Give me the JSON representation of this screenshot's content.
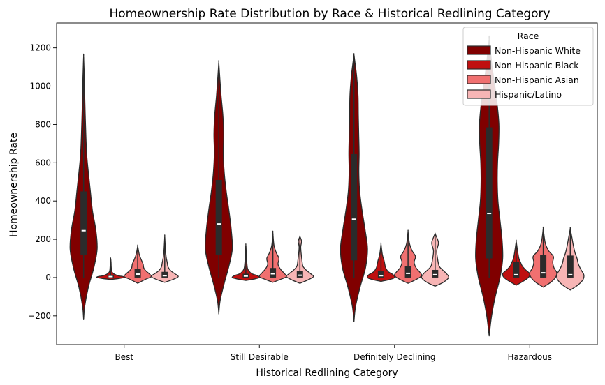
{
  "chart_data": {
    "type": "violin",
    "title": "Homeownership Rate Distribution by Race & Historical Redlining Category",
    "xlabel": "Historical Redlining Category",
    "ylabel": "Homeownership Rate",
    "categories": [
      "Best",
      "Still Desirable",
      "Definitely Declining",
      "Hazardous"
    ],
    "ylim": [
      -350,
      1330
    ],
    "yticks": [
      -200,
      0,
      200,
      400,
      600,
      800,
      1000,
      1200
    ],
    "ytick_labels": [
      "−200",
      "0",
      "200",
      "400",
      "600",
      "800",
      "1000",
      "1200"
    ],
    "grid": false,
    "legend": {
      "title": "Race",
      "placement": "top-right",
      "entries": [
        "Non-Hispanic White",
        "Non-Hispanic Black",
        "Non-Hispanic Asian",
        "Hispanic/Latino"
      ]
    },
    "series": [
      {
        "name": "Non-Hispanic White",
        "color": "#800000",
        "violins": [
          {
            "ymin": -220,
            "ymax": 1155,
            "q1": 120,
            "median": 245,
            "q3": 450,
            "whisker_low": 0,
            "whisker_high": 1150,
            "profile": [
              [
                -220,
                0.0
              ],
              [
                -150,
                0.08
              ],
              [
                -50,
                0.35
              ],
              [
                50,
                0.75
              ],
              [
                150,
                1.0
              ],
              [
                250,
                0.9
              ],
              [
                350,
                0.65
              ],
              [
                450,
                0.5
              ],
              [
                550,
                0.35
              ],
              [
                650,
                0.22
              ],
              [
                800,
                0.14
              ],
              [
                950,
                0.08
              ],
              [
                1050,
                0.05
              ],
              [
                1155,
                0.0
              ]
            ]
          },
          {
            "ymin": -190,
            "ymax": 1125,
            "q1": 120,
            "median": 280,
            "q3": 510,
            "whisker_low": 0,
            "whisker_high": 1120,
            "profile": [
              [
                -190,
                0.0
              ],
              [
                -120,
                0.1
              ],
              [
                -30,
                0.4
              ],
              [
                60,
                0.75
              ],
              [
                150,
                1.0
              ],
              [
                250,
                0.92
              ],
              [
                350,
                0.75
              ],
              [
                450,
                0.55
              ],
              [
                550,
                0.4
              ],
              [
                650,
                0.33
              ],
              [
                750,
                0.36
              ],
              [
                850,
                0.3
              ],
              [
                950,
                0.17
              ],
              [
                1050,
                0.07
              ],
              [
                1125,
                0.0
              ]
            ]
          },
          {
            "ymin": -230,
            "ymax": 1165,
            "q1": 90,
            "median": 305,
            "q3": 645,
            "whisker_low": 0,
            "whisker_high": 1160,
            "profile": [
              [
                -230,
                0.0
              ],
              [
                -150,
                0.12
              ],
              [
                -50,
                0.45
              ],
              [
                50,
                0.85
              ],
              [
                150,
                1.0
              ],
              [
                250,
                0.82
              ],
              [
                350,
                0.6
              ],
              [
                450,
                0.42
              ],
              [
                550,
                0.36
              ],
              [
                650,
                0.38
              ],
              [
                750,
                0.35
              ],
              [
                850,
                0.32
              ],
              [
                950,
                0.3
              ],
              [
                1050,
                0.2
              ],
              [
                1120,
                0.08
              ],
              [
                1165,
                0.0
              ]
            ]
          },
          {
            "ymin": -305,
            "ymax": 1245,
            "q1": 100,
            "median": 335,
            "q3": 785,
            "whisker_low": 0,
            "whisker_high": 1240,
            "profile": [
              [
                -305,
                0.0
              ],
              [
                -200,
                0.18
              ],
              [
                -100,
                0.45
              ],
              [
                0,
                0.8
              ],
              [
                100,
                1.0
              ],
              [
                200,
                0.95
              ],
              [
                300,
                0.8
              ],
              [
                400,
                0.65
              ],
              [
                500,
                0.6
              ],
              [
                600,
                0.62
              ],
              [
                700,
                0.7
              ],
              [
                800,
                0.72
              ],
              [
                900,
                0.6
              ],
              [
                1000,
                0.42
              ],
              [
                1100,
                0.22
              ],
              [
                1245,
                0.0
              ]
            ]
          }
        ]
      },
      {
        "name": "Non-Hispanic Black",
        "color": "#bf1010",
        "violins": [
          {
            "ymin": -10,
            "ymax": 100,
            "q1": 0,
            "median": 5,
            "q3": 12,
            "whisker_low": 0,
            "whisker_high": 95,
            "profile": [
              [
                -10,
                0.0
              ],
              [
                -5,
                0.6
              ],
              [
                0,
                1.0
              ],
              [
                5,
                0.95
              ],
              [
                10,
                0.55
              ],
              [
                20,
                0.22
              ],
              [
                30,
                0.1
              ],
              [
                40,
                0.06
              ],
              [
                60,
                0.04
              ],
              [
                80,
                0.03
              ],
              [
                100,
                0.0
              ]
            ]
          },
          {
            "ymin": -15,
            "ymax": 170,
            "q1": 0,
            "median": 8,
            "q3": 20,
            "whisker_low": 0,
            "whisker_high": 165,
            "profile": [
              [
                -15,
                0.0
              ],
              [
                -8,
                0.6
              ],
              [
                0,
                1.0
              ],
              [
                10,
                0.85
              ],
              [
                20,
                0.45
              ],
              [
                35,
                0.22
              ],
              [
                50,
                0.12
              ],
              [
                80,
                0.07
              ],
              [
                120,
                0.04
              ],
              [
                170,
                0.0
              ]
            ]
          },
          {
            "ymin": -20,
            "ymax": 175,
            "q1": 0,
            "median": 10,
            "q3": 35,
            "whisker_low": 0,
            "whisker_high": 170,
            "profile": [
              [
                -20,
                0.0
              ],
              [
                -10,
                0.65
              ],
              [
                0,
                1.0
              ],
              [
                15,
                0.9
              ],
              [
                30,
                0.55
              ],
              [
                50,
                0.35
              ],
              [
                70,
                0.28
              ],
              [
                90,
                0.22
              ],
              [
                120,
                0.1
              ],
              [
                175,
                0.0
              ]
            ]
          },
          {
            "ymin": -40,
            "ymax": 190,
            "q1": 0,
            "median": 15,
            "q3": 80,
            "whisker_low": 0,
            "whisker_high": 185,
            "profile": [
              [
                -40,
                0.0
              ],
              [
                -20,
                0.5
              ],
              [
                0,
                0.9
              ],
              [
                20,
                1.0
              ],
              [
                40,
                0.7
              ],
              [
                60,
                0.45
              ],
              [
                80,
                0.32
              ],
              [
                100,
                0.2
              ],
              [
                140,
                0.1
              ],
              [
                190,
                0.0
              ]
            ]
          }
        ]
      },
      {
        "name": "Non-Hispanic Asian",
        "color": "#f07070",
        "violins": [
          {
            "ymin": -30,
            "ymax": 165,
            "q1": 0,
            "median": 18,
            "q3": 45,
            "whisker_low": 0,
            "whisker_high": 160,
            "profile": [
              [
                -30,
                0.0
              ],
              [
                -10,
                0.55
              ],
              [
                5,
                1.0
              ],
              [
                20,
                0.85
              ],
              [
                35,
                0.6
              ],
              [
                50,
                0.45
              ],
              [
                70,
                0.4
              ],
              [
                90,
                0.28
              ],
              [
                120,
                0.12
              ],
              [
                165,
                0.0
              ]
            ]
          },
          {
            "ymin": -25,
            "ymax": 235,
            "q1": 0,
            "median": 20,
            "q3": 50,
            "whisker_low": 0,
            "whisker_high": 230,
            "profile": [
              [
                -25,
                0.0
              ],
              [
                -10,
                0.55
              ],
              [
                5,
                1.0
              ],
              [
                25,
                0.8
              ],
              [
                45,
                0.55
              ],
              [
                70,
                0.38
              ],
              [
                100,
                0.45
              ],
              [
                130,
                0.25
              ],
              [
                170,
                0.08
              ],
              [
                235,
                0.0
              ]
            ]
          },
          {
            "ymin": -30,
            "ymax": 240,
            "q1": 0,
            "median": 22,
            "q3": 60,
            "whisker_low": 0,
            "whisker_high": 235,
            "profile": [
              [
                -30,
                0.0
              ],
              [
                -10,
                0.6
              ],
              [
                10,
                1.0
              ],
              [
                30,
                0.85
              ],
              [
                50,
                0.6
              ],
              [
                80,
                0.45
              ],
              [
                110,
                0.55
              ],
              [
                140,
                0.3
              ],
              [
                180,
                0.1
              ],
              [
                240,
                0.0
              ]
            ]
          },
          {
            "ymin": -50,
            "ymax": 255,
            "q1": 0,
            "median": 25,
            "q3": 120,
            "whisker_low": 0,
            "whisker_high": 250,
            "profile": [
              [
                -50,
                0.0
              ],
              [
                -25,
                0.55
              ],
              [
                0,
                0.9
              ],
              [
                25,
                1.0
              ],
              [
                50,
                0.8
              ],
              [
                80,
                0.7
              ],
              [
                110,
                0.75
              ],
              [
                140,
                0.4
              ],
              [
                180,
                0.15
              ],
              [
                255,
                0.0
              ]
            ]
          }
        ]
      },
      {
        "name": "Hispanic/Latino",
        "color": "#f7b5b5",
        "violins": [
          {
            "ymin": -25,
            "ymax": 215,
            "q1": 0,
            "median": 10,
            "q3": 30,
            "whisker_low": 0,
            "whisker_high": 210,
            "profile": [
              [
                -25,
                0.0
              ],
              [
                -10,
                0.6
              ],
              [
                5,
                1.0
              ],
              [
                20,
                0.75
              ],
              [
                35,
                0.45
              ],
              [
                55,
                0.25
              ],
              [
                80,
                0.18
              ],
              [
                110,
                0.1
              ],
              [
                150,
                0.05
              ],
              [
                215,
                0.0
              ]
            ]
          },
          {
            "ymin": -30,
            "ymax": 215,
            "q1": 0,
            "median": 12,
            "q3": 35,
            "whisker_low": 0,
            "whisker_high": 210,
            "profile": [
              [
                -30,
                0.0
              ],
              [
                -12,
                0.6
              ],
              [
                5,
                1.0
              ],
              [
                20,
                0.8
              ],
              [
                40,
                0.45
              ],
              [
                60,
                0.22
              ],
              [
                90,
                0.15
              ],
              [
                120,
                0.1
              ],
              [
                160,
                0.06
              ],
              [
                190,
                0.12
              ],
              [
                215,
                0.0
              ]
            ]
          },
          {
            "ymin": -45,
            "ymax": 230,
            "q1": 0,
            "median": 15,
            "q3": 40,
            "whisker_low": 0,
            "whisker_high": 225,
            "profile": [
              [
                -45,
                0.0
              ],
              [
                -25,
                0.6
              ],
              [
                0,
                1.0
              ],
              [
                20,
                0.85
              ],
              [
                40,
                0.55
              ],
              [
                60,
                0.3
              ],
              [
                100,
                0.18
              ],
              [
                140,
                0.12
              ],
              [
                180,
                0.25
              ],
              [
                210,
                0.12
              ],
              [
                230,
                0.0
              ]
            ]
          },
          {
            "ymin": -65,
            "ymax": 255,
            "q1": 0,
            "median": 15,
            "q3": 115,
            "whisker_low": 0,
            "whisker_high": 250,
            "profile": [
              [
                -65,
                0.0
              ],
              [
                -40,
                0.55
              ],
              [
                -10,
                0.95
              ],
              [
                15,
                1.0
              ],
              [
                40,
                0.8
              ],
              [
                70,
                0.6
              ],
              [
                100,
                0.5
              ],
              [
                130,
                0.35
              ],
              [
                170,
                0.22
              ],
              [
                210,
                0.12
              ],
              [
                255,
                0.0
              ]
            ]
          }
        ]
      }
    ]
  }
}
